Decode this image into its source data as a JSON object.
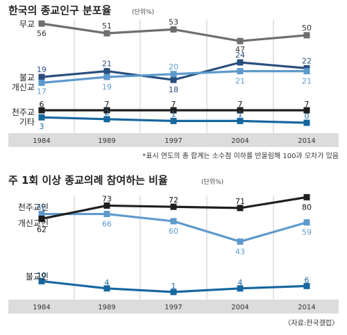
{
  "charts": [
    {
      "title": "한국의 종교인구 분포율",
      "unit": "(단위%)",
      "note": "*표시 연도의 총 합계는 소수점 이하를 반올림해 100과 오차가 있음"
    },
    {
      "title": "주 1회 이상 종교의례 참여하는 비율",
      "unit": "(단위%)",
      "note": "〈자료:한국갤럽〉"
    }
  ],
  "chart_data": [
    {
      "type": "line",
      "title": "한국의 종교인구 분포율",
      "x": [
        "1984",
        "1989",
        "1997",
        "2004",
        "2014"
      ],
      "series": [
        {
          "name": "무교",
          "values": [
            56,
            51,
            53,
            47,
            50
          ],
          "color": "#6e6e6e"
        },
        {
          "name": "불교",
          "values": [
            19,
            21,
            18,
            24,
            22
          ],
          "color": "#2a4f7e"
        },
        {
          "name": "개신교",
          "values": [
            17,
            19,
            20,
            21,
            21
          ],
          "color": "#5e9acd"
        },
        {
          "name": "천주교",
          "values": [
            6,
            7,
            7,
            7,
            7
          ],
          "color": "#1f1f1f"
        },
        {
          "name": "기타",
          "values": [
            3,
            2,
            1,
            1,
            0
          ],
          "color": "#17679f"
        }
      ]
    },
    {
      "type": "line",
      "title": "주 1회 이상 종교의례 참여하는 비율",
      "x": [
        "1984",
        "1989",
        "1997",
        "2004",
        "2014"
      ],
      "series": [
        {
          "name": "천주교인",
          "values": [
            66,
            66,
            60,
            43,
            59
          ],
          "color": "#5e9acd"
        },
        {
          "name": "개신교인",
          "values": [
            62,
            73,
            72,
            71,
            80
          ],
          "color": "#1f1f1f"
        },
        {
          "name": "불교인",
          "values": [
            10,
            4,
            1,
            4,
            6
          ],
          "color": "#17679f"
        }
      ]
    }
  ]
}
